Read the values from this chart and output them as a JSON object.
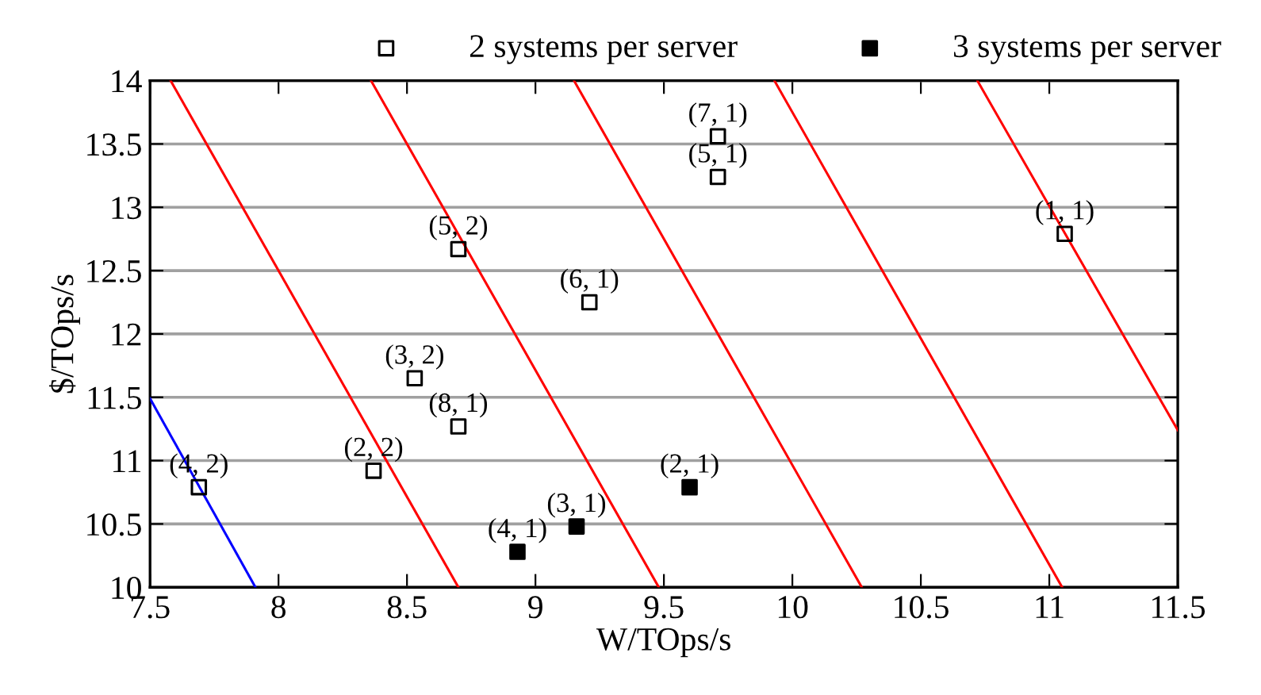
{
  "chart_data": {
    "type": "scatter",
    "xlabel": "W/TOps/s",
    "ylabel": "$/TOps/s",
    "xlim": [
      7.5,
      11.5
    ],
    "xticks": [
      7.5,
      8,
      8.5,
      9,
      9.5,
      10,
      10.5,
      11,
      11.5
    ],
    "ylim": [
      10,
      14
    ],
    "yticks": [
      10,
      10.5,
      11,
      11.5,
      12,
      12.5,
      13,
      13.5,
      14
    ],
    "grid": "y",
    "legend": "top",
    "line_style": "solid",
    "series": [
      {
        "name": "2 systems per server",
        "marker": "square",
        "color": "#000000",
        "x": [
          7.69,
          8.37,
          8.53,
          8.7,
          8.7,
          9.21,
          9.71,
          9.71,
          11.06
        ],
        "values": [
          10.79,
          10.92,
          11.65,
          11.27,
          12.67,
          12.25,
          13.56,
          13.24,
          12.79
        ]
      },
      {
        "name": "3 systems per server",
        "marker": "square",
        "color": "#000000",
        "x": [
          8.93,
          9.16,
          9.6
        ],
        "values": [
          10.28,
          10.48,
          10.79
        ]
      },
      {
        "type": "line",
        "color": "#ff0000",
        "x": [
          7.58,
          8.7
        ],
        "values": [
          14,
          10
        ]
      },
      {
        "type": "line",
        "color": "#ff0000",
        "x": [
          8.36,
          9.48
        ],
        "values": [
          14,
          10
        ]
      },
      {
        "type": "line",
        "color": "#ff0000",
        "x": [
          9.15,
          10.27
        ],
        "values": [
          14,
          10
        ]
      },
      {
        "type": "line",
        "color": "#ff0000",
        "x": [
          9.93,
          11.05
        ],
        "values": [
          14,
          10
        ]
      },
      {
        "type": "line",
        "color": "#ff0000",
        "x": [
          10.72,
          11.5
        ],
        "values": [
          14,
          11.24
        ]
      },
      {
        "type": "line",
        "color": "#0000ff",
        "x": [
          7.5,
          7.91
        ],
        "values": [
          11.49,
          10
        ]
      }
    ],
    "annotations": [
      {
        "text": "(4, 2)",
        "x": 7.69,
        "y": 10.79
      },
      {
        "text": "(2, 2)",
        "x": 8.37,
        "y": 10.92
      },
      {
        "text": "(3, 2)",
        "x": 8.53,
        "y": 11.65
      },
      {
        "text": "(8, 1)",
        "x": 8.7,
        "y": 11.27
      },
      {
        "text": "(5, 2)",
        "x": 8.7,
        "y": 12.67
      },
      {
        "text": "(6, 1)",
        "x": 9.21,
        "y": 12.25
      },
      {
        "text": "(7, 1)",
        "x": 9.71,
        "y": 13.56
      },
      {
        "text": "(5, 1)",
        "x": 9.71,
        "y": 13.24
      },
      {
        "text": "(1, 1)",
        "x": 11.06,
        "y": 12.79
      },
      {
        "text": "(4, 1)",
        "x": 8.93,
        "y": 10.28
      },
      {
        "text": "(3, 1)",
        "x": 9.16,
        "y": 10.48
      },
      {
        "text": "(2, 1)",
        "x": 9.6,
        "y": 10.79
      }
    ]
  }
}
